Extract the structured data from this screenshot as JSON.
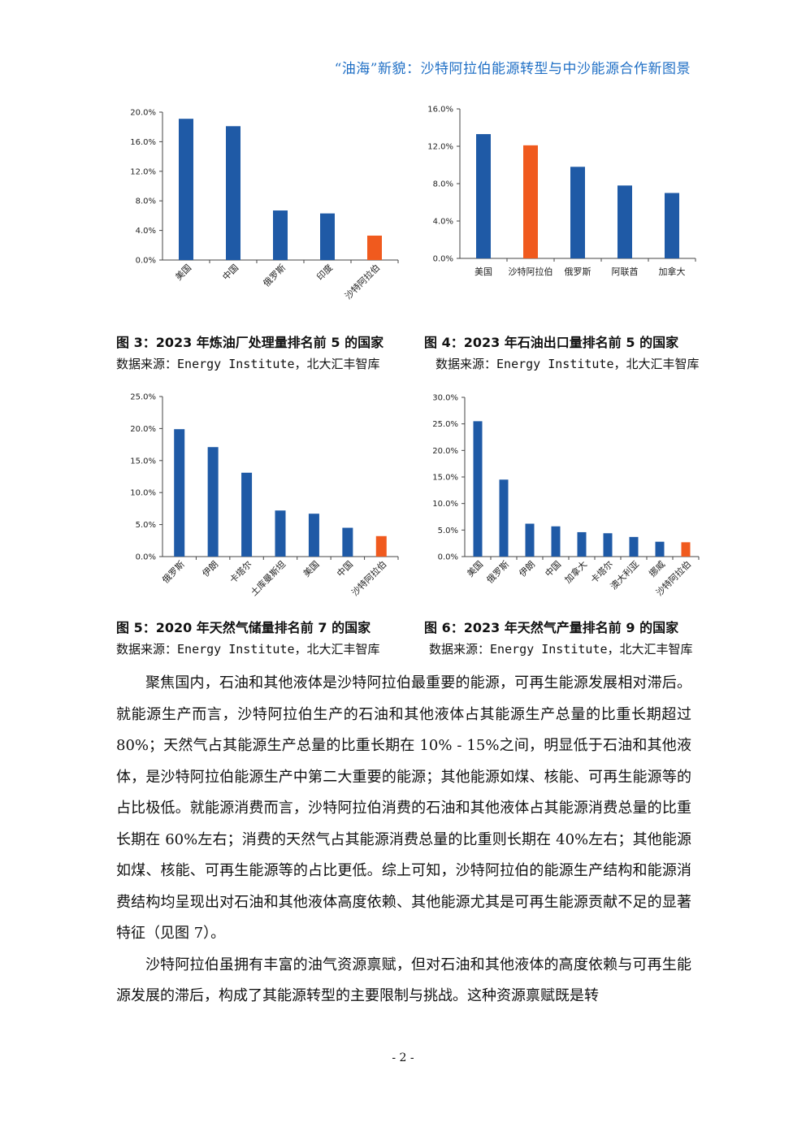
{
  "header": {
    "title": "“油海”新貌：沙特阿拉伯能源转型与中沙能源合作新图景"
  },
  "colors": {
    "bar": "#1f5aa6",
    "highlight": "#f05a1e",
    "axis": "#444444"
  },
  "figures": [
    {
      "title": "图 3：2023 年炼油厂处理量排名前 5 的国家",
      "source_label": "数据来源：",
      "source_body": "Energy Institute，北大汇丰智库"
    },
    {
      "title": "图 4：2023 年石油出口量排名前 5 的国家",
      "source_label": "数据来源：",
      "source_body": "Energy Institute，北大汇丰智库"
    },
    {
      "title": "图 5：2020 年天然气储量排名前 7 的国家",
      "source_label": "数据来源：",
      "source_body": "Energy Institute，北大汇丰智库"
    },
    {
      "title": "图 6：2023 年天然气产量排名前 9 的国家",
      "source_label": "数据来源：",
      "source_body": "Energy Institute，北大汇丰智库"
    }
  ],
  "chart_data": [
    {
      "type": "bar",
      "categories": [
        "美国",
        "中国",
        "俄罗斯",
        "印度",
        "沙特阿拉伯"
      ],
      "values": [
        19.1,
        18.1,
        6.7,
        6.3,
        3.3
      ],
      "highlight_index": 4,
      "ylim": [
        0,
        20
      ],
      "yticks": [
        "0.0%",
        "4.0%",
        "8.0%",
        "12.0%",
        "16.0%",
        "20.0%"
      ],
      "label_rotation": "rotated"
    },
    {
      "type": "bar",
      "categories": [
        "美国",
        "沙特阿拉伯",
        "俄罗斯",
        "阿联酋",
        "加拿大"
      ],
      "values": [
        13.3,
        12.1,
        9.8,
        7.8,
        7.0
      ],
      "highlight_index": 1,
      "ylim": [
        0,
        16
      ],
      "yticks": [
        "0.0%",
        "4.0%",
        "8.0%",
        "12.0%",
        "16.0%"
      ],
      "label_rotation": "horizontal"
    },
    {
      "type": "bar",
      "categories": [
        "俄罗斯",
        "伊朗",
        "卡塔尔",
        "土库曼斯坦",
        "美国",
        "中国",
        "沙特阿拉伯"
      ],
      "values": [
        19.9,
        17.1,
        13.1,
        7.2,
        6.7,
        4.5,
        3.2
      ],
      "highlight_index": 6,
      "ylim": [
        0,
        25
      ],
      "yticks": [
        "0.0%",
        "5.0%",
        "10.0%",
        "15.0%",
        "20.0%",
        "25.0%"
      ],
      "label_rotation": "rotated"
    },
    {
      "type": "bar",
      "categories": [
        "美国",
        "俄罗斯",
        "伊朗",
        "中国",
        "加拿大",
        "卡塔尔",
        "澳大利亚",
        "挪威",
        "沙特阿拉伯"
      ],
      "values": [
        25.5,
        14.5,
        6.2,
        5.7,
        4.6,
        4.4,
        3.7,
        2.8,
        2.7
      ],
      "highlight_index": 8,
      "ylim": [
        0,
        30
      ],
      "yticks": [
        "0.0%",
        "5.0%",
        "10.0%",
        "15.0%",
        "20.0%",
        "25.0%",
        "30.0%"
      ],
      "label_rotation": "rotated"
    }
  ],
  "body": {
    "p1": "聚焦国内，石油和其他液体是沙特阿拉伯最重要的能源，可再生能源发展相对滞后。就能源生产而言，沙特阿拉伯生产的石油和其他液体占其能源生产总量的比重长期超过 80%；天然气占其能源生产总量的比重长期在 10% - 15%之间，明显低于石油和其他液体，是沙特阿拉伯能源生产中第二大重要的能源；其他能源如煤、核能、可再生能源等的占比极低。就能源消费而言，沙特阿拉伯消费的石油和其他液体占其能源消费总量的比重长期在 60%左右；消费的天然气占其能源消费总量的比重则长期在 40%左右；其他能源如煤、核能、可再生能源等的占比更低。综上可知，沙特阿拉伯的能源生产结构和能源消费结构均呈现出对石油和其他液体高度依赖、其他能源尤其是可再生能源贡献不足的显著特征（见图 7）。",
    "p2": "沙特阿拉伯虽拥有丰富的油气资源禀赋，但对石油和其他液体的高度依赖与可再生能源发展的滞后，构成了其能源转型的主要限制与挑战。这种资源禀赋既是转"
  },
  "footer": {
    "page": "- 2 -"
  }
}
